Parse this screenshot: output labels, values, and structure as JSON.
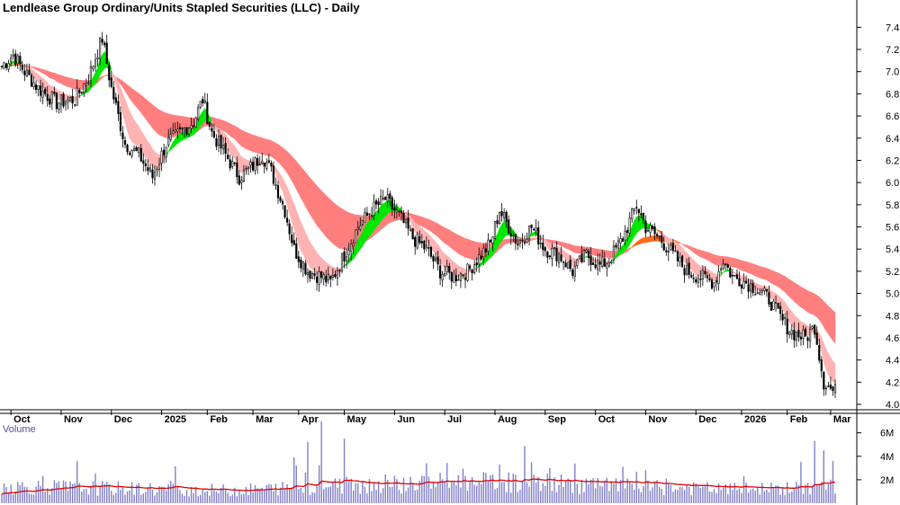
{
  "chart_data": {
    "type": "candlestick",
    "title": "Lendlease Group Ordinary/Units Stapled Securities (LLC) - Daily",
    "volume_title": "Volume",
    "price_axis": {
      "ylim": [
        4.0,
        7.5
      ],
      "ticks": [
        "7.4",
        "7.2",
        "7.0",
        "6.8",
        "6.6",
        "6.4",
        "6.2",
        "6.0",
        "5.8",
        "5.6",
        "5.4",
        "5.2",
        "5.0",
        "4.8",
        "4.6",
        "4.4",
        "4.2",
        "4.0"
      ]
    },
    "volume_axis": {
      "ylim": [
        0,
        7.2
      ],
      "unit": "M",
      "ticks": [
        "6M",
        "4M",
        "2M"
      ]
    },
    "x_labels": [
      "Oct",
      "Nov",
      "Dec",
      "2025",
      "Feb",
      "Mar",
      "Apr",
      "May",
      "Jun",
      "Jul",
      "Aug",
      "Sep",
      "Oct",
      "Nov",
      "Dec",
      "2026",
      "Feb",
      "Mar"
    ],
    "x_label_day_index": [
      4,
      26,
      48,
      70,
      90,
      110,
      130,
      150,
      172,
      194,
      216,
      238,
      260,
      282,
      304,
      324,
      344,
      363
    ],
    "price_anchors": [
      [
        0,
        7.05
      ],
      [
        5,
        7.15
      ],
      [
        10,
        7.0
      ],
      [
        16,
        6.85
      ],
      [
        24,
        6.72
      ],
      [
        32,
        6.75
      ],
      [
        38,
        6.95
      ],
      [
        44,
        7.3
      ],
      [
        48,
        6.85
      ],
      [
        54,
        6.35
      ],
      [
        60,
        6.25
      ],
      [
        66,
        6.05
      ],
      [
        72,
        6.35
      ],
      [
        78,
        6.45
      ],
      [
        84,
        6.55
      ],
      [
        88,
        6.75
      ],
      [
        92,
        6.45
      ],
      [
        98,
        6.25
      ],
      [
        104,
        6.05
      ],
      [
        110,
        6.15
      ],
      [
        114,
        6.25
      ],
      [
        118,
        6.1
      ],
      [
        124,
        5.75
      ],
      [
        128,
        5.4
      ],
      [
        134,
        5.2
      ],
      [
        140,
        5.15
      ],
      [
        144,
        5.1
      ],
      [
        150,
        5.35
      ],
      [
        156,
        5.6
      ],
      [
        162,
        5.75
      ],
      [
        168,
        5.85
      ],
      [
        174,
        5.7
      ],
      [
        180,
        5.5
      ],
      [
        186,
        5.4
      ],
      [
        192,
        5.2
      ],
      [
        198,
        5.15
      ],
      [
        204,
        5.2
      ],
      [
        210,
        5.35
      ],
      [
        214,
        5.45
      ],
      [
        218,
        5.75
      ],
      [
        222,
        5.6
      ],
      [
        226,
        5.45
      ],
      [
        232,
        5.6
      ],
      [
        238,
        5.4
      ],
      [
        244,
        5.35
      ],
      [
        250,
        5.2
      ],
      [
        256,
        5.35
      ],
      [
        262,
        5.25
      ],
      [
        266,
        5.3
      ],
      [
        272,
        5.5
      ],
      [
        278,
        5.8
      ],
      [
        282,
        5.6
      ],
      [
        288,
        5.5
      ],
      [
        294,
        5.35
      ],
      [
        300,
        5.2
      ],
      [
        306,
        5.15
      ],
      [
        312,
        5.1
      ],
      [
        316,
        5.3
      ],
      [
        320,
        5.15
      ],
      [
        326,
        5.1
      ],
      [
        330,
        5.05
      ],
      [
        336,
        4.95
      ],
      [
        342,
        4.75
      ],
      [
        346,
        4.65
      ],
      [
        352,
        4.6
      ],
      [
        356,
        4.7
      ],
      [
        360,
        4.2
      ],
      [
        364,
        4.12
      ]
    ],
    "volume_anchors": [
      [
        0,
        1.6
      ],
      [
        50,
        1.4
      ],
      [
        100,
        1.2
      ],
      [
        150,
        1.7
      ],
      [
        200,
        2.0
      ],
      [
        240,
        1.9
      ],
      [
        280,
        1.5
      ],
      [
        320,
        1.3
      ],
      [
        350,
        1.4
      ],
      [
        365,
        1.7
      ]
    ],
    "volume_spikes": [
      [
        128,
        3.9
      ],
      [
        134,
        5.2
      ],
      [
        140,
        7.0
      ],
      [
        150,
        5.5
      ],
      [
        186,
        3.4
      ],
      [
        218,
        3.3
      ],
      [
        232,
        3.5
      ],
      [
        240,
        3.0
      ],
      [
        272,
        3.1
      ],
      [
        282,
        2.8
      ],
      [
        356,
        5.3
      ],
      [
        360,
        4.5
      ],
      [
        364,
        3.6
      ]
    ],
    "series": [
      {
        "kind": "short-term moving-average ribbon",
        "colors": {
          "up": "#00e800",
          "down": "#ff6a1a",
          "weak": "#ffb3b3"
        }
      },
      {
        "kind": "long-term moving-average ribbon",
        "colors": {
          "up": "#ff6a1a",
          "down": "#ff7f7f"
        }
      },
      {
        "kind": "volume average line",
        "color": "#e00000"
      }
    ],
    "grid": false,
    "colors": {
      "up_candle": "#ffffff",
      "down_candle": "#000000",
      "volume_bars": "#8080c8"
    }
  }
}
